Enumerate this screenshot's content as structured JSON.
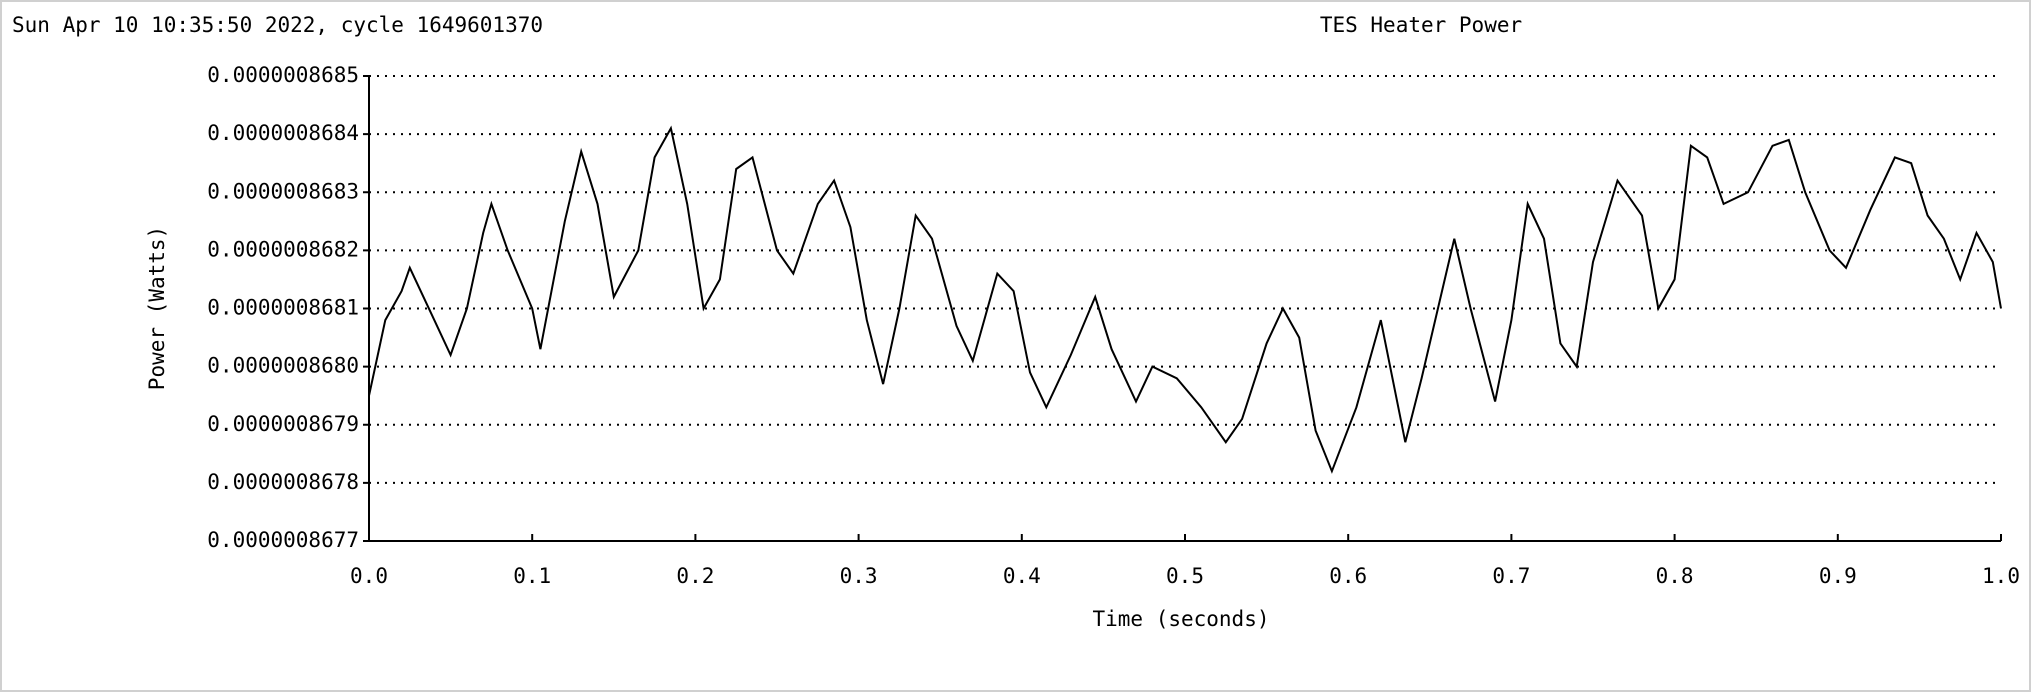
{
  "chart_data": {
    "type": "line",
    "timestamp": "Sun Apr 10 10:35:50 2022, cycle 1649601370",
    "title": "TES Heater Power",
    "x_label": "Time (seconds)",
    "y_label": "Power (Watts)",
    "xlim": [
      0,
      1
    ],
    "xticks": [
      {
        "value": 0,
        "label": "0.0"
      },
      0.1,
      0.2,
      0.3,
      0.4,
      0.5,
      0.6,
      0.7,
      0.8,
      0.9,
      {
        "value": 1,
        "label": "1.0"
      }
    ],
    "ylim": [
      8.677e-07,
      8.685e-07
    ],
    "yticks": [
      {
        "value": 8.677e-07,
        "label": "0.0000008677"
      },
      {
        "value": 8.678e-07,
        "label": "0.0000008678"
      },
      {
        "value": 8.679e-07,
        "label": "0.0000008679"
      },
      {
        "value": 8.68e-07,
        "label": "0.0000008680"
      },
      {
        "value": 8.681e-07,
        "label": "0.0000008681"
      },
      {
        "value": 8.682e-07,
        "label": "0.0000008682"
      },
      {
        "value": 8.683e-07,
        "label": "0.0000008683"
      },
      {
        "value": 8.684e-07,
        "label": "0.0000008684"
      },
      {
        "value": 8.685e-07,
        "label": "0.0000008685"
      }
    ],
    "grid": true,
    "x": [
      0,
      0.01,
      0.02,
      0.025,
      0.04,
      0.05,
      0.06,
      0.07,
      0.075,
      0.085,
      0.1,
      0.105,
      0.12,
      0.13,
      0.14,
      0.15,
      0.165,
      0.175,
      0.185,
      0.195,
      0.205,
      0.215,
      0.225,
      0.235,
      0.25,
      0.26,
      0.275,
      0.285,
      0.295,
      0.305,
      0.315,
      0.325,
      0.335,
      0.345,
      0.36,
      0.37,
      0.385,
      0.395,
      0.405,
      0.415,
      0.43,
      0.445,
      0.455,
      0.47,
      0.48,
      0.495,
      0.51,
      0.525,
      0.535,
      0.55,
      0.56,
      0.57,
      0.58,
      0.59,
      0.605,
      0.62,
      0.635,
      0.645,
      0.66,
      0.665,
      0.675,
      0.69,
      0.7,
      0.71,
      0.72,
      0.73,
      0.74,
      0.75,
      0.765,
      0.78,
      0.79,
      0.8,
      0.81,
      0.82,
      0.83,
      0.845,
      0.86,
      0.87,
      0.88,
      0.895,
      0.905,
      0.92,
      0.935,
      0.945,
      0.955,
      0.965,
      0.975,
      0.985,
      0.995,
      1
    ],
    "series": [
      {
        "color": "#000000",
        "values": [
          8.6795e-07,
          8.6808e-07,
          8.6813e-07,
          8.6817e-07,
          8.6808e-07,
          8.6802e-07,
          8.681e-07,
          8.6823e-07,
          8.6828e-07,
          8.682e-07,
          8.681e-07,
          8.6803e-07,
          8.6825e-07,
          8.6837e-07,
          8.6828e-07,
          8.6812e-07,
          8.682e-07,
          8.6836e-07,
          8.6841e-07,
          8.6828e-07,
          8.681e-07,
          8.6815e-07,
          8.6834e-07,
          8.6836e-07,
          8.682e-07,
          8.6816e-07,
          8.6828e-07,
          8.6832e-07,
          8.6824e-07,
          8.6808e-07,
          8.6797e-07,
          8.681e-07,
          8.6826e-07,
          8.6822e-07,
          8.6807e-07,
          8.6801e-07,
          8.6816e-07,
          8.6813e-07,
          8.6799e-07,
          8.6793e-07,
          8.6802e-07,
          8.6812e-07,
          8.6803e-07,
          8.6794e-07,
          8.68e-07,
          8.6798e-07,
          8.6793e-07,
          8.6787e-07,
          8.6791e-07,
          8.6804e-07,
          8.681e-07,
          8.6805e-07,
          8.6789e-07,
          8.6782e-07,
          8.6793e-07,
          8.6808e-07,
          8.6787e-07,
          8.6798e-07,
          8.6816e-07,
          8.6822e-07,
          8.681e-07,
          8.6794e-07,
          8.6808e-07,
          8.6828e-07,
          8.6822e-07,
          8.6804e-07,
          8.68e-07,
          8.6818e-07,
          8.6832e-07,
          8.6826e-07,
          8.681e-07,
          8.6815e-07,
          8.6838e-07,
          8.6836e-07,
          8.6828e-07,
          8.683e-07,
          8.6838e-07,
          8.6839e-07,
          8.683e-07,
          8.682e-07,
          8.6817e-07,
          8.6827e-07,
          8.6836e-07,
          8.6835e-07,
          8.6826e-07,
          8.6822e-07,
          8.6815e-07,
          8.6823e-07,
          8.6818e-07,
          8.681e-07
        ]
      }
    ]
  }
}
